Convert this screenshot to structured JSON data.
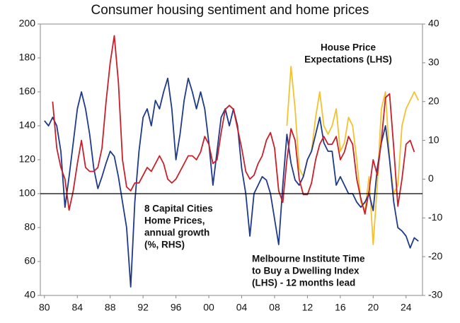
{
  "chart_data": {
    "type": "line",
    "title": "Consumer housing sentiment and home prices",
    "xlim": [
      1979.5,
      2026
    ],
    "xticks": [
      {
        "value": 1980,
        "label": "80"
      },
      {
        "value": 1984,
        "label": "84"
      },
      {
        "value": 1988,
        "label": "88"
      },
      {
        "value": 1992,
        "label": "92"
      },
      {
        "value": 1996,
        "label": "96"
      },
      {
        "value": 2000,
        "label": "00"
      },
      {
        "value": 2004,
        "label": "04"
      },
      {
        "value": 2008,
        "label": "08"
      },
      {
        "value": 2012,
        "label": "12"
      },
      {
        "value": 2016,
        "label": "16"
      },
      {
        "value": 2020,
        "label": "20"
      },
      {
        "value": 2024,
        "label": "24"
      }
    ],
    "ylim": [
      40,
      200
    ],
    "yticks": [
      40,
      60,
      80,
      100,
      120,
      140,
      160,
      180,
      200
    ],
    "y2lim": [
      -30,
      40
    ],
    "y2ticks": [
      -30,
      -20,
      -10,
      0,
      10,
      20,
      30,
      40
    ],
    "hline": 100,
    "series": [
      {
        "name": "Melbourne Institute Time to Buy a Dwelling Index (LHS) - 12 months lead",
        "color": "#1f3a8a",
        "x": [
          1980,
          1980.5,
          1981,
          1981.5,
          1982,
          1982.5,
          1983,
          1983.5,
          1984,
          1984.5,
          1985,
          1985.5,
          1986,
          1986.5,
          1987,
          1987.5,
          1988,
          1988.5,
          1989,
          1989.5,
          1990,
          1990.5,
          1991,
          1991.5,
          1992,
          1992.5,
          1993,
          1993.5,
          1994,
          1994.5,
          1995,
          1995.5,
          1996,
          1996.5,
          1997,
          1997.5,
          1998,
          1998.5,
          1999,
          1999.5,
          2000,
          2000.5,
          2001,
          2001.5,
          2002,
          2002.5,
          2003,
          2003.5,
          2004,
          2004.5,
          2005,
          2005.5,
          2006,
          2006.5,
          2007,
          2007.5,
          2008,
          2008.5,
          2009,
          2009.5,
          2010,
          2010.5,
          2011,
          2011.5,
          2012,
          2012.5,
          2013,
          2013.5,
          2014,
          2014.5,
          2015,
          2015.5,
          2016,
          2016.5,
          2017,
          2017.5,
          2018,
          2018.5,
          2019,
          2019.5,
          2020,
          2020.5,
          2021,
          2021.5,
          2022,
          2022.5,
          2023,
          2023.5,
          2024,
          2024.5,
          2025,
          2025.5
        ],
        "values": [
          143,
          140,
          145,
          140,
          125,
          92,
          110,
          130,
          150,
          160,
          150,
          135,
          115,
          103,
          110,
          118,
          125,
          122,
          110,
          95,
          80,
          45,
          95,
          125,
          145,
          150,
          140,
          155,
          150,
          160,
          168,
          150,
          120,
          135,
          155,
          168,
          160,
          150,
          160,
          150,
          130,
          105,
          125,
          145,
          150,
          140,
          150,
          140,
          115,
          100,
          75,
          100,
          105,
          110,
          108,
          100,
          85,
          70,
          105,
          135,
          118,
          108,
          105,
          110,
          120,
          125,
          135,
          145,
          130,
          125,
          125,
          105,
          110,
          105,
          100,
          100,
          95,
          92,
          95,
          100,
          90,
          115,
          130,
          140,
          120,
          95,
          80,
          78,
          75,
          68,
          74,
          72
        ]
      },
      {
        "name": "8 Capital Cities Home Prices, annual growth (%, RHS)",
        "color": "#c8202a",
        "axis": "y2",
        "x": [
          1981,
          1981.5,
          1982,
          1982.5,
          1983,
          1983.5,
          1984,
          1984.5,
          1985,
          1985.5,
          1986,
          1986.5,
          1987,
          1987.5,
          1988,
          1988.5,
          1989,
          1989.5,
          1990,
          1990.5,
          1991,
          1991.5,
          1992,
          1992.5,
          1993,
          1993.5,
          1994,
          1994.5,
          1995,
          1995.5,
          1996,
          1996.5,
          1997,
          1997.5,
          1998,
          1998.5,
          1999,
          1999.5,
          2000,
          2000.5,
          2001,
          2001.5,
          2002,
          2002.5,
          2003,
          2003.5,
          2004,
          2004.5,
          2005,
          2005.5,
          2006,
          2006.5,
          2007,
          2007.5,
          2008,
          2008.5,
          2009,
          2009.5,
          2010,
          2010.5,
          2011,
          2011.5,
          2012,
          2012.5,
          2013,
          2013.5,
          2014,
          2014.5,
          2015,
          2015.5,
          2016,
          2016.5,
          2017,
          2017.5,
          2018,
          2018.5,
          2019,
          2019.5,
          2020,
          2020.5,
          2021,
          2021.5,
          2022,
          2022.5,
          2023,
          2023.5,
          2024,
          2024.5,
          2025
        ],
        "values": [
          20,
          8,
          3,
          0,
          -8,
          -3,
          4,
          10,
          3,
          2,
          2,
          3,
          8,
          20,
          30,
          37,
          25,
          5,
          -2,
          -3,
          -1,
          -1,
          1,
          3,
          2,
          4,
          6,
          4,
          0,
          -1,
          0,
          2,
          4,
          6,
          6,
          5,
          7,
          11,
          9,
          4,
          5,
          12,
          18,
          19,
          18,
          13,
          8,
          2,
          0,
          1,
          4,
          6,
          10,
          12,
          8,
          -3,
          -6,
          5,
          13,
          10,
          0,
          -4,
          -4,
          -1,
          5,
          9,
          11,
          9,
          9,
          11,
          5,
          7,
          11,
          9,
          0,
          -5,
          -9,
          -3,
          5,
          1,
          10,
          21,
          22,
          8,
          -7,
          0,
          9,
          10,
          7
        ]
      },
      {
        "name": "House Price Expectations (LHS)",
        "color": "#f2c230",
        "x": [
          2009.5,
          2010,
          2010.5,
          2011,
          2011.5,
          2012,
          2012.5,
          2013,
          2013.5,
          2014,
          2014.5,
          2015,
          2015.5,
          2016,
          2016.5,
          2017,
          2017.5,
          2018,
          2018.5,
          2019,
          2019.5,
          2020,
          2020.5,
          2021,
          2021.5,
          2022,
          2022.5,
          2023,
          2023.5,
          2024,
          2024.5,
          2025,
          2025.5
        ],
        "values": [
          140,
          175,
          150,
          115,
          110,
          120,
          125,
          145,
          160,
          140,
          135,
          140,
          150,
          125,
          130,
          145,
          140,
          120,
          95,
          90,
          110,
          70,
          105,
          150,
          160,
          120,
          100,
          105,
          140,
          150,
          155,
          160,
          155
        ]
      }
    ],
    "annotations": [
      {
        "lines": [
          "House Price",
          "Expectations (LHS)"
        ],
        "color": "#f2c230"
      },
      {
        "lines": [
          "8 Capital Cities",
          "Home Prices,",
          "annual growth",
          "(%, RHS)"
        ],
        "color": "#c8202a"
      },
      {
        "lines": [
          "Melbourne Institute Time",
          "to Buy a Dwelling Index",
          "(LHS) - 12 months lead"
        ],
        "color": "#1f3a8a"
      }
    ]
  }
}
